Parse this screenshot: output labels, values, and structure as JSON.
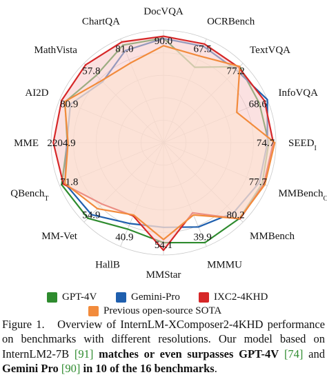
{
  "chart_data": {
    "type": "radar",
    "axes": [
      {
        "label": "DocVQA",
        "sub": "",
        "tick": "90.0",
        "max": 95.0
      },
      {
        "label": "OCRBench",
        "sub": "",
        "tick": "67.5",
        "max": 71.0
      },
      {
        "label": "TextVQA",
        "sub": "",
        "tick": "77.2",
        "max": 81.5
      },
      {
        "label": "InfoVQA",
        "sub": "",
        "tick": "68.6",
        "max": 70.5
      },
      {
        "label": "SEED",
        "sub": "I",
        "tick": "74.7",
        "max": 76.5
      },
      {
        "label": "MMBench",
        "sub": "CN",
        "tick": "77.7",
        "max": 80.5
      },
      {
        "label": "MMBench",
        "sub": "",
        "tick": "80.2",
        "max": 83.5
      },
      {
        "label": "MMMU",
        "sub": "",
        "tick": "39.9",
        "max": 59.0
      },
      {
        "label": "MMStar",
        "sub": "",
        "tick": "54.1",
        "max": 56.5
      },
      {
        "label": "HallB",
        "sub": "",
        "tick": "40.9",
        "max": 58.0
      },
      {
        "label": "MM-Vet",
        "sub": "",
        "tick": "54.9",
        "max": 71.0
      },
      {
        "label": "QBench",
        "sub": "T",
        "tick": "71.8",
        "max": 74.5
      },
      {
        "label": "MME",
        "sub": "",
        "tick": "2204.9",
        "max": 2250
      },
      {
        "label": "AI2D",
        "sub": "",
        "tick": "80.9",
        "max": 82.5
      },
      {
        "label": "MathVista",
        "sub": "",
        "tick": "57.8",
        "max": 59.0
      },
      {
        "label": "ChartQA",
        "sub": "",
        "tick": "81.0",
        "max": 83.5
      }
    ],
    "series": [
      {
        "name": "GPT-4V",
        "color": "#2e8b2e",
        "fill": "none",
        "values": [
          88.4,
          51.6,
          78.0,
          65.0,
          71.6,
          76.5,
          79.7,
          56.8,
          50.3,
          48.3,
          67.6,
          73.0,
          1926.5,
          78.2,
          49.9,
          78.5
        ]
      },
      {
        "name": "Gemini-Pro",
        "color": "#1f5fae",
        "fill": "none",
        "values": [
          88.1,
          65.9,
          74.6,
          70.5,
          70.7,
          74.3,
          73.6,
          47.9,
          42.6,
          45.2,
          64.3,
          70.7,
          1933.4,
          73.9,
          45.2,
          74.1
        ]
      },
      {
        "name": "IXC2-4KHD",
        "color": "#d62728",
        "fill": "#f7c9c9",
        "values": [
          90.0,
          67.5,
          77.2,
          68.6,
          74.7,
          77.7,
          80.2,
          39.9,
          54.1,
          40.9,
          54.9,
          71.8,
          2204.9,
          80.9,
          57.8,
          81.0
        ]
      },
      {
        "name": "Previous open-source SOTA",
        "color": "#f28b3c",
        "fill": "#fde4cf",
        "values": [
          82.0,
          59.3,
          78.2,
          49.7,
          75.7,
          78.5,
          79.8,
          41.1,
          48.7,
          40.4,
          59.0,
          70.7,
          1910.0,
          78.5,
          46.0,
          64.1
        ]
      }
    ]
  },
  "legend": [
    {
      "name": "GPT-4V",
      "color": "#2e8b2e"
    },
    {
      "name": "Gemini-Pro",
      "color": "#1f5fae"
    },
    {
      "name": "IXC2-4KHD",
      "color": "#d62728"
    },
    {
      "name": "Previous open-source SOTA",
      "color": "#f28b3c"
    }
  ],
  "caption": {
    "fig_label": "Figure 1.",
    "text1": "Overview of InternLM-XComposer2-4KHD performance on benchmarks with different resolutions. Our model based on InternLM2-7B ",
    "ref1": "[91]",
    "text2": " matches or even surpasses ",
    "bold1": "GPT-4V",
    "ref2": "[74]",
    "text3": " and ",
    "bold2": "Gemini Pro",
    "ref3": "[90]",
    "bold3": " in 10 of the 16 benchmarks",
    "end": "."
  }
}
